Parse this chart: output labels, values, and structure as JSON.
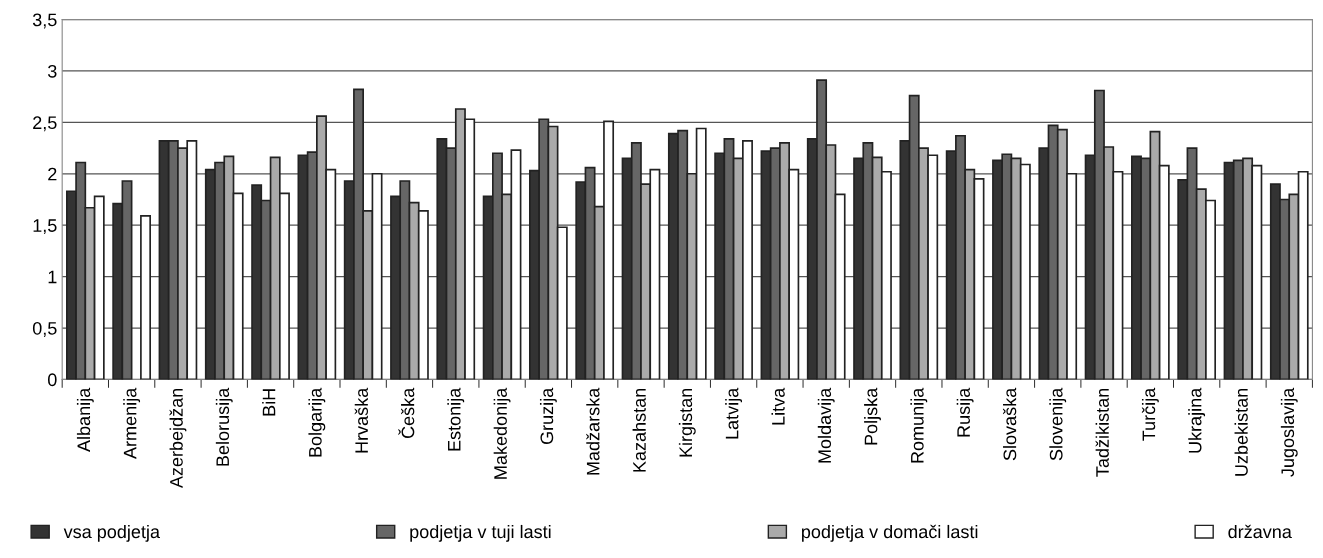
{
  "chart_data": {
    "type": "bar",
    "categories": [
      "Albanija",
      "Armenija",
      "Azerbejdžan",
      "Belorusija",
      "BiH",
      "Bolgarija",
      "Hrvaška",
      "Češka",
      "Estonija",
      "Makedonija",
      "Gruzija",
      "Madžarska",
      "Kazahstan",
      "Kirgistan",
      "Latvija",
      "Litva",
      "Moldavija",
      "Poljska",
      "Romunija",
      "Rusija",
      "Slovaška",
      "Slovenija",
      "Tadžikistan",
      "Turčija",
      "Ukrajina",
      "Uzbekistan",
      "Jugoslavija"
    ],
    "series": [
      {
        "name": "vsa podjetja",
        "color": "#333333",
        "values": [
          1.83,
          1.71,
          2.32,
          2.04,
          1.89,
          2.18,
          1.93,
          1.78,
          2.34,
          1.78,
          2.03,
          1.92,
          2.15,
          2.39,
          2.2,
          2.22,
          2.34,
          2.15,
          2.32,
          2.22,
          2.13,
          2.25,
          2.18,
          2.17,
          1.94,
          2.11,
          1.9
        ]
      },
      {
        "name": "podjetja v tuji lasti",
        "color": "#666666",
        "values": [
          2.11,
          1.93,
          2.32,
          2.11,
          1.74,
          2.21,
          2.82,
          1.93,
          2.25,
          2.2,
          2.53,
          2.06,
          2.3,
          2.42,
          2.34,
          2.25,
          2.91,
          2.3,
          2.76,
          2.37,
          2.19,
          2.47,
          2.81,
          2.15,
          2.25,
          2.13,
          1.75
        ]
      },
      {
        "name": "podjetja v domači lasti",
        "color": "#aaaaaa",
        "values": [
          1.67,
          null,
          2.25,
          2.17,
          2.16,
          2.56,
          1.64,
          1.72,
          2.63,
          1.8,
          2.46,
          1.68,
          1.9,
          2.0,
          2.15,
          2.3,
          2.28,
          2.16,
          2.25,
          2.04,
          2.15,
          2.43,
          2.26,
          2.41,
          1.85,
          2.15,
          1.8
        ]
      },
      {
        "name": "državna",
        "color": "#ffffff",
        "values": [
          1.78,
          1.59,
          2.32,
          1.81,
          1.81,
          2.04,
          2.0,
          1.64,
          2.53,
          2.23,
          1.48,
          2.51,
          2.04,
          2.44,
          2.32,
          2.04,
          1.8,
          2.02,
          2.18,
          1.95,
          2.09,
          2.0,
          2.02,
          2.08,
          1.74,
          2.08,
          2.02
        ]
      }
    ],
    "ylim": [
      0,
      3.5
    ],
    "yticks": [
      0,
      {
        "value": 0.5,
        "label": "0,5"
      },
      1,
      {
        "value": 1.5,
        "label": "1,5"
      },
      2,
      {
        "value": 2.5,
        "label": "2,5"
      },
      3,
      {
        "value": 3.5,
        "label": "3,5"
      }
    ],
    "grid": "y",
    "legend": "bottom"
  }
}
